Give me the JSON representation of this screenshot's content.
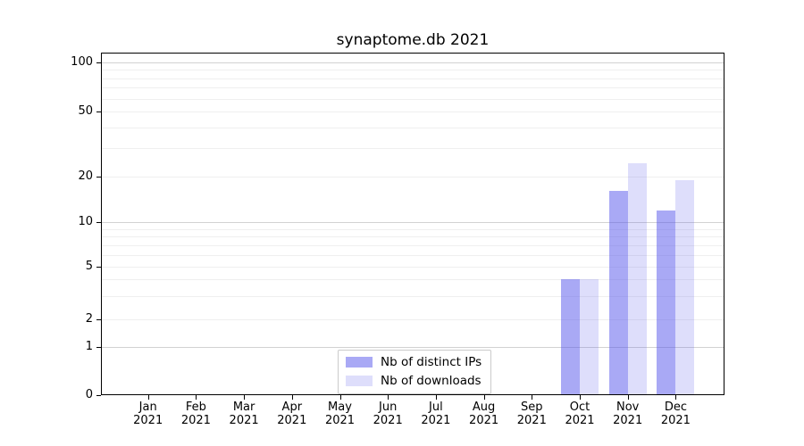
{
  "chart_data": {
    "type": "bar",
    "title": "synaptome.db 2021",
    "year": "2021",
    "months": [
      "Jan",
      "Feb",
      "Mar",
      "Apr",
      "May",
      "Jun",
      "Jul",
      "Aug",
      "Sep",
      "Oct",
      "Nov",
      "Dec"
    ],
    "series": [
      {
        "name": "Nb of distinct IPs",
        "color": "rgba(90,90,235,0.52)",
        "values": [
          0,
          0,
          0,
          0,
          0,
          0,
          0,
          0,
          0,
          4,
          16,
          12
        ]
      },
      {
        "name": "Nb of downloads",
        "color": "rgba(90,90,235,0.20)",
        "values": [
          0,
          0,
          0,
          0,
          0,
          0,
          0,
          0,
          0,
          4,
          24,
          19
        ]
      }
    ],
    "y_axis": {
      "tick_labels": [
        "100",
        "50",
        "20",
        "10",
        "5",
        "2",
        "1",
        "0"
      ],
      "tick_values": [
        100,
        50,
        20,
        10,
        5,
        2,
        1,
        0
      ],
      "scale": "log-like with zero baseline",
      "major_gridlines": [
        1,
        10,
        100
      ],
      "minor_gridlines": [
        2,
        3,
        4,
        5,
        6,
        7,
        8,
        9,
        20,
        30,
        40,
        50,
        60,
        70,
        80,
        90
      ]
    },
    "legend_position": "lower center",
    "grid": true
  },
  "colors": {
    "distinct_ips_solid": "#a9a9f5",
    "downloads_solid": "#dedefb",
    "major_gridline": "#d2d2d2",
    "minor_gridline": "#efefef",
    "axis": "#000000",
    "background": "#ffffff"
  }
}
